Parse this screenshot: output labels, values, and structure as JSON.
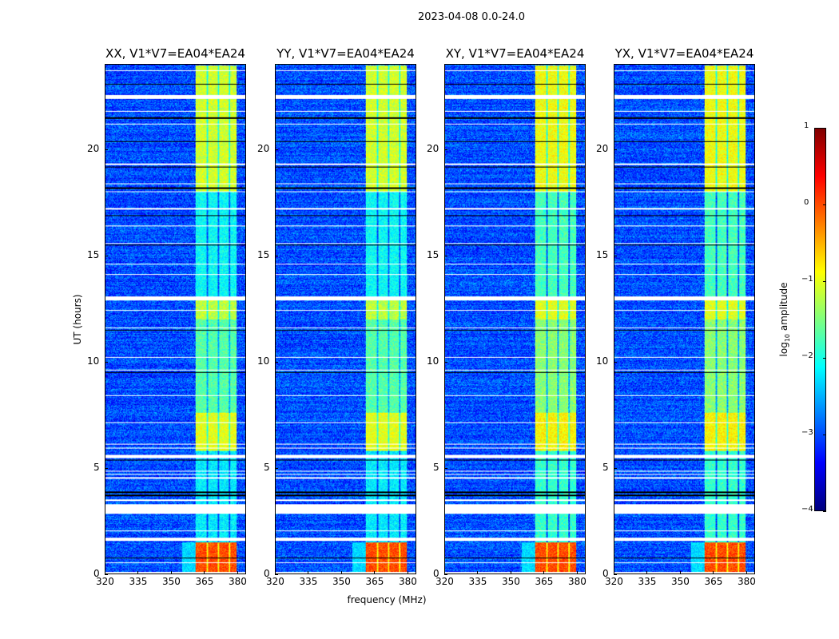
{
  "title": "2023-04-08 0.0-24.0",
  "chart_data": {
    "type": "heatmap",
    "title": "2023-04-08 0.0-24.0",
    "xlabel": "frequency (MHz)",
    "ylabel": "UT (hours)",
    "xlim": [
      320,
      384
    ],
    "ylim": [
      0,
      24
    ],
    "xticks": [
      320,
      335,
      350,
      365,
      380
    ],
    "yticks": [
      0,
      5,
      10,
      15,
      20
    ],
    "panels": [
      {
        "title": "XX, V1*V7=EA04*EA24"
      },
      {
        "title": "YY, V1*V7=EA04*EA24"
      },
      {
        "title": "XY, V1*V7=EA04*EA24"
      },
      {
        "title": "YX, V1*V7=EA04*EA24"
      }
    ],
    "colorbar": {
      "label": "log10 amplitude",
      "label_main": "log",
      "label_sub": "10",
      "label_rest": " amplitude",
      "range": [
        -4,
        1
      ],
      "ticks": [
        "1",
        "0",
        "−1",
        "−2",
        "−3",
        "−4"
      ],
      "tick_values": [
        1,
        0,
        -1,
        -2,
        -3,
        -4
      ],
      "colormap": "jet"
    },
    "background_level": -3.0,
    "rfi_band_mhz": [
      361,
      380
    ],
    "rfi_channel_gaps_mhz": [
      366.5,
      371.5,
      376.5
    ],
    "rfi_levels": [
      {
        "from": 0.0,
        "to": 1.5,
        "level": 0.0
      },
      {
        "from": 1.5,
        "to": 5.8,
        "level": -2.2
      },
      {
        "from": 5.8,
        "to": 7.6,
        "level": -1.0
      },
      {
        "from": 7.6,
        "to": 12.0,
        "level": -1.7
      },
      {
        "from": 12.0,
        "to": 13.1,
        "level": -1.2
      },
      {
        "from": 13.1,
        "to": 18.0,
        "level": -2.1
      },
      {
        "from": 18.0,
        "to": 24.0,
        "level": -1.1
      }
    ],
    "flagged_white_hours": [
      [
        0.0,
        0.1
      ],
      [
        0.5,
        0.55
      ],
      [
        1.55,
        1.72
      ],
      [
        2.0,
        2.05
      ],
      [
        2.85,
        3.3
      ],
      [
        3.45,
        3.5
      ],
      [
        4.5,
        4.55
      ],
      [
        4.68,
        4.72
      ],
      [
        4.82,
        4.86
      ],
      [
        5.45,
        5.62
      ],
      [
        5.9,
        5.94
      ],
      [
        6.1,
        6.14
      ],
      [
        7.1,
        7.15
      ],
      [
        8.4,
        8.44
      ],
      [
        9.6,
        9.65
      ],
      [
        10.2,
        10.24
      ],
      [
        11.6,
        11.64
      ],
      [
        12.4,
        12.44
      ],
      [
        12.9,
        13.1
      ],
      [
        14.1,
        14.15
      ],
      [
        14.6,
        14.64
      ],
      [
        15.55,
        15.6
      ],
      [
        16.4,
        16.45
      ],
      [
        17.2,
        17.26
      ],
      [
        18.0,
        18.05
      ],
      [
        18.4,
        18.44
      ],
      [
        19.3,
        19.36
      ],
      [
        21.2,
        21.25
      ],
      [
        21.8,
        21.85
      ],
      [
        22.4,
        22.6
      ],
      [
        23.7,
        23.75
      ]
    ],
    "flagged_black_hours": [
      0.75,
      3.7,
      3.85,
      5.38,
      9.5,
      11.5,
      15.5,
      16.9,
      18.2,
      19.2,
      20.4,
      21.5,
      23.1
    ]
  }
}
